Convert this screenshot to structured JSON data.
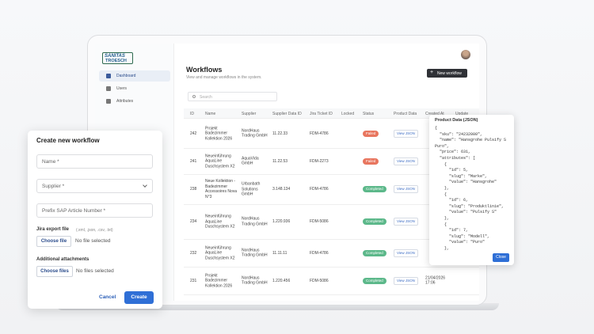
{
  "sidebar": {
    "logo": [
      "SANITAS",
      "TROESCH"
    ],
    "nav": [
      "Dashboard",
      "Users",
      "Attributes"
    ]
  },
  "header": {
    "title": "Workflows",
    "subtitle": "View and manage workflows in the system.",
    "button": "New workflow"
  },
  "search": "Search",
  "table": {
    "columns": [
      "ID",
      "Name",
      "Supplier",
      "Supplier Data ID",
      "Jira Ticket ID",
      "Locked",
      "Status",
      "Product Data",
      "Created At",
      "Update"
    ],
    "rows": [
      {
        "id": "242",
        "name": "Projekt Badezimmer Kollektion 2026",
        "supplier": "NordHaus Trading GmbH",
        "supplier_data_id": "11.22.33",
        "jira_ticket_id": "FDM-4786",
        "status": "Failed",
        "status_color": "#e8765f",
        "product_data": "View JSON"
      },
      {
        "id": "241",
        "name": "Neueinführung AquaLine Duschsystem X2",
        "supplier": "AquaVida GmbH",
        "supplier_data_id": "11.22.53",
        "jira_ticket_id": "FDM-2273",
        "status": "Failed",
        "status_color": "#e8765f",
        "product_data": "View JSON"
      },
      {
        "id": "238",
        "name": "Neue Kollektion - Badezimmer Accessoires Nova N°3",
        "supplier": "Urbanbath Solutions GmbH",
        "supplier_data_id": "3.148.134",
        "jira_ticket_id": "FDM-4786",
        "status": "Completed",
        "status_color": "#5cb88a",
        "product_data": "View JSON"
      },
      {
        "id": "234",
        "name": "Neueinführung AquaLine Duschsystem X2",
        "supplier": "NordHaus Trading GmbH",
        "supplier_data_id": "1.220.936",
        "jira_ticket_id": "FDM-5086",
        "status": "Completed",
        "status_color": "#5cb88a",
        "product_data": "View JSON"
      },
      {
        "id": "232",
        "name": "Neueinführung AquaLine Duschsystem X2",
        "supplier": "NordHaus Trading GmbH",
        "supplier_data_id": "11.11.11",
        "jira_ticket_id": "FDM-4786",
        "status": "Completed",
        "status_color": "#5cb88a",
        "product_data": "View JSON"
      },
      {
        "id": "231",
        "name": "Projekt Badezimmer Kollektion 2026",
        "supplier": "NordHaus Trading GmbH",
        "supplier_data_id": "1.220.456",
        "jira_ticket_id": "FDM-5086",
        "status": "Completed",
        "status_color": "#5cb88a",
        "product_data": "View JSON",
        "created_at": "21/04/2026 17:06"
      }
    ]
  },
  "json_panel": {
    "title": "Product Data (JSON)",
    "lines": [
      "{",
      "  \"sku\": \"24232000\",",
      "  \"name\": \"Hansgrohe Pulsify S",
      "Puro\",",
      "  \"price\": 631,",
      "  \"attributes\": [",
      "    {",
      "      \"id\": 5,",
      "      \"slug\": \"Marke\",",
      "      \"value\": \"Hansgrohe\"",
      "    },",
      "    {",
      "      \"id\": 6,",
      "      \"slug\": \"Produktlinie\",",
      "      \"value\": \"Pulsify S\"",
      "    },",
      "    {",
      "      \"id\": 7,",
      "      \"slug\": \"Modell\",",
      "      \"value\": \"Puro\"",
      "    },"
    ],
    "close": "Close"
  },
  "modal": {
    "title": "Create new workflow",
    "fields": [
      "Name *",
      "Supplier *",
      "Prefix SAP Article Number *"
    ],
    "jira_label": "Jira export file",
    "jira_hint": "(.xml, .json, .csv, .txt)",
    "choose_file": "Choose file",
    "no_file": "No file selected",
    "attachments_label": "Additional attachments",
    "choose_files": "Choose files",
    "no_files": "No files selected",
    "cancel": "Cancel",
    "create": "Create"
  }
}
